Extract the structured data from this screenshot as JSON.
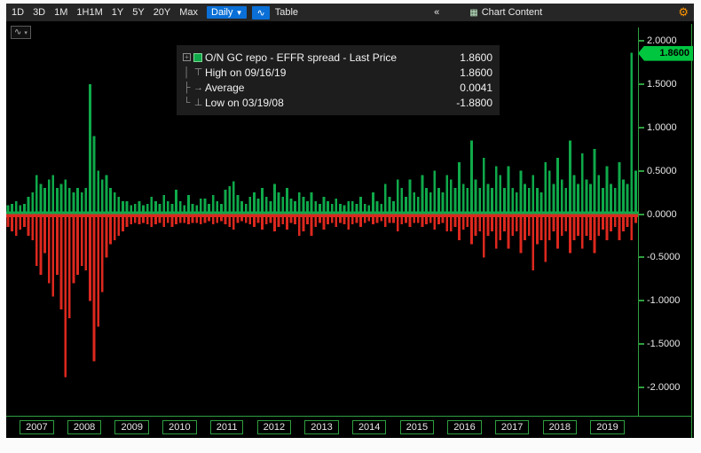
{
  "toolbar": {
    "range_buttons": [
      "1D",
      "3D",
      "1M",
      "1H1M",
      "1Y",
      "5Y",
      "20Y",
      "Max"
    ],
    "period_label": "Daily",
    "period_caret": "▼",
    "chart_type_icon": "∿",
    "table_label": "Table",
    "collapse_icon": "«",
    "chart_content_icon": "▦",
    "chart_content_label": "Chart Content",
    "settings_icon": "⚙"
  },
  "chart_picker": {
    "icon": "∿",
    "caret": "▾"
  },
  "legend": {
    "rows": [
      {
        "tree": "+",
        "marker": "square",
        "label": "O/N GC repo - EFFR spread - Last Price",
        "value": "1.8600"
      },
      {
        "tree": "│",
        "marker": "⊤",
        "label": "High on 09/16/19",
        "value": "1.8600"
      },
      {
        "tree": "├",
        "marker": "→",
        "label": "Average",
        "value": "0.0041"
      },
      {
        "tree": "└",
        "marker": "⊥",
        "label": "Low on 03/19/08",
        "value": "-1.8800"
      }
    ]
  },
  "axis_y": {
    "ticks": [
      {
        "label": "2.0000",
        "value": 2.0
      },
      {
        "label": "1.5000",
        "value": 1.5
      },
      {
        "label": "1.0000",
        "value": 1.0
      },
      {
        "label": "0.5000",
        "value": 0.5
      },
      {
        "label": "0.0000",
        "value": 0.0
      },
      {
        "label": "-0.5000",
        "value": -0.5
      },
      {
        "label": "-1.0000",
        "value": -1.0
      },
      {
        "label": "-1.5000",
        "value": -1.5
      },
      {
        "label": "-2.0000",
        "value": -2.0
      }
    ]
  },
  "axis_x": {
    "years": [
      "2007",
      "2008",
      "2009",
      "2010",
      "2011",
      "2012",
      "2013",
      "2014",
      "2015",
      "2016",
      "2017",
      "2018",
      "2019"
    ]
  },
  "last_price_badge": "1.8600",
  "chart_data": {
    "type": "bar",
    "title": "O/N GC repo - EFFR spread",
    "series_name": "O/N GC repo - EFFR spread - Last Price",
    "last": 1.86,
    "high": {
      "date": "09/16/19",
      "value": 1.86
    },
    "average": 0.0041,
    "low": {
      "date": "03/19/08",
      "value": -1.88
    },
    "ylim": [
      -2.0,
      2.0
    ],
    "x_range_years": [
      2007,
      2019
    ],
    "resolution": "monthly-approximation-from-daily-bars",
    "colors": {
      "positive": "#0fa94a",
      "negative": "#dc281e",
      "axis": "#2e9e3f",
      "badge": "#00c53f"
    },
    "up": [
      0.1,
      0.12,
      0.15,
      0.1,
      0.12,
      0.2,
      0.25,
      0.45,
      0.35,
      0.3,
      0.4,
      0.45,
      0.3,
      0.35,
      0.4,
      0.3,
      0.25,
      0.3,
      0.25,
      0.3,
      1.5,
      0.9,
      0.5,
      0.4,
      0.45,
      0.3,
      0.25,
      0.2,
      0.15,
      0.15,
      0.1,
      0.12,
      0.15,
      0.1,
      0.12,
      0.2,
      0.15,
      0.12,
      0.22,
      0.15,
      0.12,
      0.28,
      0.15,
      0.1,
      0.22,
      0.12,
      0.1,
      0.18,
      0.18,
      0.12,
      0.22,
      0.15,
      0.12,
      0.28,
      0.32,
      0.38,
      0.22,
      0.15,
      0.12,
      0.2,
      0.25,
      0.18,
      0.3,
      0.2,
      0.15,
      0.35,
      0.25,
      0.2,
      0.3,
      0.18,
      0.15,
      0.25,
      0.2,
      0.15,
      0.25,
      0.15,
      0.12,
      0.2,
      0.15,
      0.12,
      0.18,
      0.12,
      0.1,
      0.15,
      0.15,
      0.12,
      0.2,
      0.12,
      0.1,
      0.25,
      0.15,
      0.12,
      0.35,
      0.2,
      0.15,
      0.4,
      0.3,
      0.2,
      0.4,
      0.25,
      0.2,
      0.45,
      0.3,
      0.25,
      0.5,
      0.3,
      0.25,
      0.45,
      0.4,
      0.3,
      0.6,
      0.35,
      0.3,
      0.85,
      0.4,
      0.3,
      0.65,
      0.35,
      0.3,
      0.55,
      0.45,
      0.3,
      0.55,
      0.3,
      0.25,
      0.5,
      0.35,
      0.3,
      0.45,
      0.3,
      0.25,
      0.6,
      0.5,
      0.35,
      0.65,
      0.4,
      0.3,
      0.85,
      0.45,
      0.35,
      0.7,
      0.4,
      0.35,
      0.75,
      0.45,
      0.3,
      0.55,
      0.35,
      0.3,
      0.6,
      0.4,
      0.35,
      1.86,
      0.5
    ],
    "down": [
      -0.15,
      -0.2,
      -0.25,
      -0.18,
      -0.15,
      -0.25,
      -0.3,
      -0.6,
      -0.7,
      -0.45,
      -0.8,
      -0.95,
      -0.7,
      -1.1,
      -1.88,
      -1.2,
      -0.8,
      -0.7,
      -0.6,
      -0.65,
      -1.0,
      -1.7,
      -1.3,
      -0.9,
      -0.5,
      -0.35,
      -0.3,
      -0.25,
      -0.2,
      -0.15,
      -0.12,
      -0.1,
      -0.12,
      -0.1,
      -0.12,
      -0.15,
      -0.12,
      -0.1,
      -0.15,
      -0.1,
      -0.15,
      -0.12,
      -0.1,
      -0.1,
      -0.12,
      -0.1,
      -0.1,
      -0.12,
      -0.1,
      -0.08,
      -0.12,
      -0.1,
      -0.08,
      -0.12,
      -0.15,
      -0.18,
      -0.1,
      -0.08,
      -0.1,
      -0.12,
      -0.15,
      -0.1,
      -0.18,
      -0.12,
      -0.1,
      -0.2,
      -0.15,
      -0.12,
      -0.18,
      -0.1,
      -0.12,
      -0.25,
      -0.2,
      -0.12,
      -0.25,
      -0.15,
      -0.1,
      -0.18,
      -0.12,
      -0.1,
      -0.15,
      -0.1,
      -0.12,
      -0.18,
      -0.12,
      -0.1,
      -0.15,
      -0.1,
      -0.08,
      -0.12,
      -0.1,
      -0.08,
      -0.15,
      -0.1,
      -0.1,
      -0.2,
      -0.12,
      -0.1,
      -0.15,
      -0.1,
      -0.1,
      -0.15,
      -0.12,
      -0.1,
      -0.18,
      -0.12,
      -0.1,
      -0.2,
      -0.2,
      -0.15,
      -0.3,
      -0.18,
      -0.15,
      -0.35,
      -0.25,
      -0.2,
      -0.5,
      -0.25,
      -0.2,
      -0.4,
      -0.3,
      -0.2,
      -0.4,
      -0.25,
      -0.2,
      -0.45,
      -0.3,
      -0.25,
      -0.65,
      -0.35,
      -0.3,
      -0.55,
      -0.3,
      -0.2,
      -0.4,
      -0.25,
      -0.2,
      -0.45,
      -0.3,
      -0.25,
      -0.4,
      -0.25,
      -0.3,
      -0.45,
      -0.25,
      -0.18,
      -0.3,
      -0.2,
      -0.15,
      -0.3,
      -0.2,
      -0.15,
      -0.3,
      -0.1
    ]
  }
}
